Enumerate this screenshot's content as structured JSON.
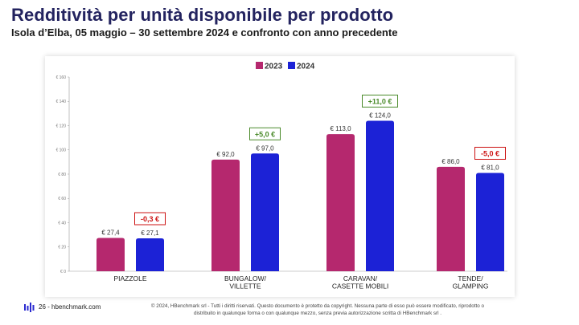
{
  "header": {
    "title": "Redditività per unità disponibile per prodotto",
    "subtitle": "Isola d’Elba,  05 maggio – 30 settembre 2024 e confronto con anno precedente"
  },
  "chart_data": {
    "type": "bar",
    "title": "",
    "categories": [
      [
        "PIAZZOLE"
      ],
      [
        "BUNGALOW/",
        "VILLETTE"
      ],
      [
        "CARAVAN/",
        "CASETTE MOBILI"
      ],
      [
        "TENDE/",
        "GLAMPING"
      ]
    ],
    "series": [
      {
        "name": "2023",
        "color": "#b5286e",
        "values": [
          27.4,
          92.0,
          113.0,
          86.0
        ],
        "labels": [
          "€ 27,4",
          "€ 92,0",
          "€ 113,0",
          "€ 86,0"
        ]
      },
      {
        "name": "2024",
        "color": "#1c22d6",
        "values": [
          27.1,
          97.0,
          124.0,
          81.0
        ],
        "labels": [
          "€ 27,1",
          "€ 97,0",
          "€ 124,0",
          "€ 81,0"
        ]
      }
    ],
    "deltas": [
      {
        "text": "-0,3 €",
        "kind": "negative"
      },
      {
        "text": "+5,0 €",
        "kind": "positive"
      },
      {
        "text": "+11,0 €",
        "kind": "positive"
      },
      {
        "text": "-5,0 €",
        "kind": "negative"
      }
    ],
    "delta_colors": {
      "positive": "#4a8a2a",
      "negative": "#cc1111"
    },
    "yticks": [
      0,
      20,
      40,
      60,
      80,
      100,
      120,
      140,
      160
    ],
    "ytick_labels": [
      "€ 0",
      "€ 20",
      "€ 40",
      "€ 60",
      "€ 80",
      "€ 100",
      "€ 120",
      "€ 140",
      "€ 160"
    ],
    "ylim": [
      0,
      160
    ],
    "grid": false,
    "legend": "top-center"
  },
  "footer": {
    "page": "26 - hbenchmark.com",
    "copyright_line1": "© 2024, HBenchmark srl - Tutti i diritti riservati. Questo documento è protetto da copyright. Nessuna parte di esso può essere modificato, riprodotto o",
    "copyright_line2": "distribuito in qualunque forma o con qualunque mezzo, senza previa autorizzazione scritta di HBenchmark srl ."
  }
}
